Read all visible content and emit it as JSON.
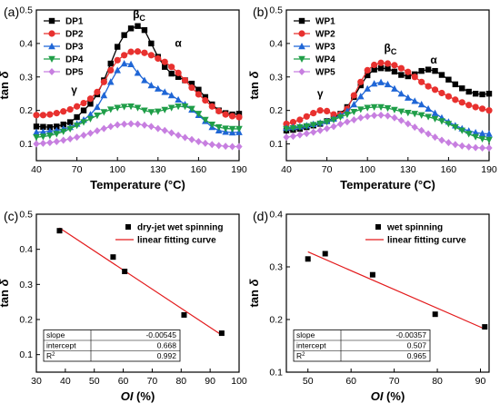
{
  "colors": {
    "axis": "#000000",
    "fit_line": "#e31a1c"
  },
  "chart_data": [
    {
      "type": "line",
      "panel_label": "(a)",
      "xlabel": "Temperature (°C)",
      "ylabel": "tan δ",
      "xlim": [
        40,
        190
      ],
      "ylim": [
        0.05,
        0.5
      ],
      "xticks": [
        40,
        70,
        100,
        130,
        160,
        190
      ],
      "yticks": [
        0.1,
        0.2,
        0.3,
        0.4,
        0.5
      ],
      "legend_position": "top-left",
      "annotations": [
        {
          "text": "βC",
          "main": "β",
          "sub": "C",
          "x": 116,
          "y": 0.475
        },
        {
          "text": "α",
          "x": 145,
          "y": 0.39
        },
        {
          "text": "γ",
          "x": 68,
          "y": 0.25
        }
      ],
      "series": [
        {
          "name": "DP1",
          "color": "#000000",
          "marker": "square",
          "x": [
            40,
            45,
            50,
            55,
            60,
            65,
            70,
            75,
            80,
            85,
            90,
            95,
            100,
            105,
            110,
            115,
            120,
            125,
            130,
            135,
            140,
            145,
            150,
            155,
            160,
            165,
            170,
            175,
            180,
            185,
            190
          ],
          "y": [
            0.152,
            0.151,
            0.15,
            0.152,
            0.158,
            0.165,
            0.18,
            0.2,
            0.22,
            0.248,
            0.29,
            0.34,
            0.39,
            0.425,
            0.445,
            0.452,
            0.44,
            0.4,
            0.36,
            0.33,
            0.31,
            0.3,
            0.29,
            0.28,
            0.262,
            0.24,
            0.218,
            0.2,
            0.192,
            0.188,
            0.19
          ]
        },
        {
          "name": "DP2",
          "color": "#e8312f",
          "marker": "circle",
          "x": [
            40,
            45,
            50,
            55,
            60,
            65,
            70,
            75,
            80,
            85,
            90,
            95,
            100,
            105,
            110,
            115,
            120,
            125,
            130,
            135,
            140,
            145,
            150,
            155,
            160,
            165,
            170,
            175,
            180,
            185,
            190
          ],
          "y": [
            0.186,
            0.186,
            0.188,
            0.192,
            0.197,
            0.203,
            0.212,
            0.222,
            0.235,
            0.255,
            0.285,
            0.32,
            0.35,
            0.365,
            0.375,
            0.376,
            0.372,
            0.365,
            0.355,
            0.345,
            0.33,
            0.312,
            0.29,
            0.268,
            0.248,
            0.23,
            0.212,
            0.198,
            0.188,
            0.183,
            0.18
          ]
        },
        {
          "name": "DP3",
          "color": "#1f66d6",
          "marker": "triangle-up",
          "x": [
            40,
            45,
            50,
            55,
            60,
            65,
            70,
            75,
            80,
            85,
            90,
            95,
            100,
            105,
            110,
            115,
            120,
            125,
            130,
            135,
            140,
            145,
            150,
            155,
            160,
            165,
            170,
            175,
            180,
            185,
            190
          ],
          "y": [
            0.135,
            0.136,
            0.138,
            0.14,
            0.145,
            0.15,
            0.16,
            0.172,
            0.188,
            0.21,
            0.245,
            0.285,
            0.32,
            0.34,
            0.338,
            0.312,
            0.29,
            0.275,
            0.265,
            0.255,
            0.245,
            0.232,
            0.218,
            0.202,
            0.186,
            0.168,
            0.15,
            0.14,
            0.136,
            0.134,
            0.135
          ]
        },
        {
          "name": "DP4",
          "color": "#1f9e48",
          "marker": "triangle-down",
          "x": [
            40,
            45,
            50,
            55,
            60,
            65,
            70,
            75,
            80,
            85,
            90,
            95,
            100,
            105,
            110,
            115,
            120,
            125,
            130,
            135,
            140,
            145,
            150,
            155,
            160,
            165,
            170,
            175,
            180,
            185,
            190
          ],
          "y": [
            0.12,
            0.122,
            0.125,
            0.13,
            0.137,
            0.145,
            0.155,
            0.165,
            0.175,
            0.185,
            0.195,
            0.203,
            0.208,
            0.211,
            0.212,
            0.208,
            0.2,
            0.195,
            0.197,
            0.202,
            0.208,
            0.212,
            0.212,
            0.205,
            0.19,
            0.172,
            0.158,
            0.15,
            0.146,
            0.145,
            0.145
          ]
        },
        {
          "name": "DP5",
          "color": "#c77fe0",
          "marker": "diamond",
          "x": [
            40,
            45,
            50,
            55,
            60,
            65,
            70,
            75,
            80,
            85,
            90,
            95,
            100,
            105,
            110,
            115,
            120,
            125,
            130,
            135,
            140,
            145,
            150,
            155,
            160,
            165,
            170,
            175,
            180,
            185,
            190
          ],
          "y": [
            0.1,
            0.102,
            0.104,
            0.107,
            0.111,
            0.115,
            0.12,
            0.126,
            0.132,
            0.139,
            0.146,
            0.152,
            0.157,
            0.159,
            0.16,
            0.159,
            0.156,
            0.152,
            0.146,
            0.14,
            0.133,
            0.126,
            0.119,
            0.113,
            0.107,
            0.102,
            0.098,
            0.095,
            0.093,
            0.092,
            0.092
          ]
        }
      ]
    },
    {
      "type": "line",
      "panel_label": "(b)",
      "xlabel": "Temperature (°C)",
      "ylabel": "tan δ",
      "xlim": [
        40,
        190
      ],
      "ylim": [
        0.05,
        0.5
      ],
      "xticks": [
        40,
        70,
        100,
        130,
        160,
        190
      ],
      "yticks": [
        0.1,
        0.2,
        0.3,
        0.4,
        0.5
      ],
      "legend_position": "top-left",
      "annotations": [
        {
          "text": "βC",
          "main": "β",
          "sub": "C",
          "x": 117,
          "y": 0.375
        },
        {
          "text": "α",
          "x": 149,
          "y": 0.34
        },
        {
          "text": "γ",
          "x": 65,
          "y": 0.24
        }
      ],
      "series": [
        {
          "name": "WP1",
          "color": "#000000",
          "marker": "square",
          "x": [
            40,
            45,
            50,
            55,
            60,
            65,
            70,
            75,
            80,
            85,
            90,
            95,
            100,
            105,
            110,
            115,
            120,
            125,
            130,
            135,
            140,
            145,
            150,
            155,
            160,
            165,
            170,
            175,
            180,
            185,
            190
          ],
          "y": [
            0.14,
            0.142,
            0.145,
            0.15,
            0.155,
            0.16,
            0.168,
            0.178,
            0.19,
            0.21,
            0.24,
            0.275,
            0.305,
            0.322,
            0.326,
            0.325,
            0.316,
            0.306,
            0.302,
            0.308,
            0.318,
            0.322,
            0.318,
            0.306,
            0.292,
            0.278,
            0.266,
            0.256,
            0.25,
            0.248,
            0.25
          ]
        },
        {
          "name": "WP2",
          "color": "#e8312f",
          "marker": "circle",
          "x": [
            40,
            45,
            50,
            55,
            60,
            65,
            70,
            75,
            80,
            85,
            90,
            95,
            100,
            105,
            110,
            115,
            120,
            125,
            130,
            135,
            140,
            145,
            150,
            155,
            160,
            165,
            170,
            175,
            180,
            185,
            190
          ],
          "y": [
            0.16,
            0.165,
            0.172,
            0.182,
            0.192,
            0.2,
            0.198,
            0.188,
            0.188,
            0.205,
            0.245,
            0.285,
            0.32,
            0.336,
            0.342,
            0.34,
            0.335,
            0.326,
            0.315,
            0.3,
            0.285,
            0.272,
            0.262,
            0.252,
            0.242,
            0.232,
            0.224,
            0.216,
            0.21,
            0.205,
            0.2
          ]
        },
        {
          "name": "WP3",
          "color": "#1f66d6",
          "marker": "triangle-up",
          "x": [
            40,
            45,
            50,
            55,
            60,
            65,
            70,
            75,
            80,
            85,
            90,
            95,
            100,
            105,
            110,
            115,
            120,
            125,
            130,
            135,
            140,
            145,
            150,
            155,
            160,
            165,
            170,
            175,
            180,
            185,
            190
          ],
          "y": [
            0.148,
            0.15,
            0.152,
            0.155,
            0.159,
            0.163,
            0.168,
            0.175,
            0.185,
            0.198,
            0.218,
            0.242,
            0.265,
            0.28,
            0.284,
            0.278,
            0.265,
            0.25,
            0.238,
            0.228,
            0.218,
            0.205,
            0.192,
            0.178,
            0.166,
            0.155,
            0.146,
            0.139,
            0.134,
            0.131,
            0.13
          ]
        },
        {
          "name": "WP4",
          "color": "#1f9e48",
          "marker": "triangle-down",
          "x": [
            40,
            45,
            50,
            55,
            60,
            65,
            70,
            75,
            80,
            85,
            90,
            95,
            100,
            105,
            110,
            115,
            120,
            125,
            130,
            135,
            140,
            145,
            150,
            155,
            160,
            165,
            170,
            175,
            180,
            185,
            190
          ],
          "y": [
            0.145,
            0.147,
            0.15,
            0.153,
            0.157,
            0.161,
            0.166,
            0.172,
            0.18,
            0.188,
            0.196,
            0.203,
            0.208,
            0.21,
            0.21,
            0.207,
            0.202,
            0.197,
            0.193,
            0.19,
            0.186,
            0.181,
            0.175,
            0.168,
            0.16,
            0.15,
            0.14,
            0.13,
            0.121,
            0.115,
            0.112
          ]
        },
        {
          "name": "WP5",
          "color": "#c77fe0",
          "marker": "diamond",
          "x": [
            40,
            45,
            50,
            55,
            60,
            65,
            70,
            75,
            80,
            85,
            90,
            95,
            100,
            105,
            110,
            115,
            120,
            125,
            130,
            135,
            140,
            145,
            150,
            155,
            160,
            165,
            170,
            175,
            180,
            185,
            190
          ],
          "y": [
            0.12,
            0.123,
            0.127,
            0.131,
            0.135,
            0.14,
            0.146,
            0.152,
            0.159,
            0.166,
            0.172,
            0.178,
            0.182,
            0.185,
            0.186,
            0.184,
            0.178,
            0.17,
            0.16,
            0.15,
            0.14,
            0.13,
            0.12,
            0.111,
            0.104,
            0.098,
            0.094,
            0.091,
            0.089,
            0.088,
            0.088
          ]
        }
      ]
    },
    {
      "type": "scatter",
      "panel_label": "(c)",
      "xlabel": "OI (%)",
      "ylabel": "tan δ",
      "xlim": [
        30,
        100
      ],
      "ylim": [
        0.05,
        0.5
      ],
      "xticks": [
        30,
        40,
        50,
        60,
        70,
        80,
        90,
        100
      ],
      "yticks": [
        0.1,
        0.2,
        0.3,
        0.4,
        0.5
      ],
      "legend_position": "top-right",
      "points": {
        "name": "dry-jet wet spinning",
        "x": [
          38,
          56.5,
          60.5,
          81,
          94
        ],
        "y": [
          0.453,
          0.378,
          0.337,
          0.213,
          0.161
        ]
      },
      "fit": {
        "name": "linear fitting curve",
        "slope": -0.00545,
        "intercept": 0.668,
        "x_range": [
          38,
          94
        ]
      },
      "table": [
        {
          "label": "slope",
          "value": "-0.00545"
        },
        {
          "label": "intercept",
          "value": "0.668"
        },
        {
          "label": "R",
          "sup": "2",
          "value": "0.992"
        }
      ]
    },
    {
      "type": "scatter",
      "panel_label": "(d)",
      "xlabel": "OI (%)",
      "ylabel": "tan δ",
      "xlim": [
        45,
        92
      ],
      "ylim": [
        0.1,
        0.4
      ],
      "xticks": [
        50,
        60,
        70,
        80,
        90
      ],
      "yticks": [
        0.1,
        0.2,
        0.3,
        0.4
      ],
      "legend_position": "top-right",
      "points": {
        "name": "wet spinning",
        "x": [
          50,
          54,
          65,
          79.5,
          91
        ],
        "y": [
          0.315,
          0.325,
          0.285,
          0.21,
          0.186
        ]
      },
      "fit": {
        "name": "linear fitting curve",
        "slope": -0.00357,
        "intercept": 0.507,
        "x_range": [
          50,
          91
        ]
      },
      "table": [
        {
          "label": "slope",
          "value": "-0.00357"
        },
        {
          "label": "intercept",
          "value": "0.507"
        },
        {
          "label": "R",
          "sup": "2",
          "value": "0.965"
        }
      ]
    }
  ]
}
